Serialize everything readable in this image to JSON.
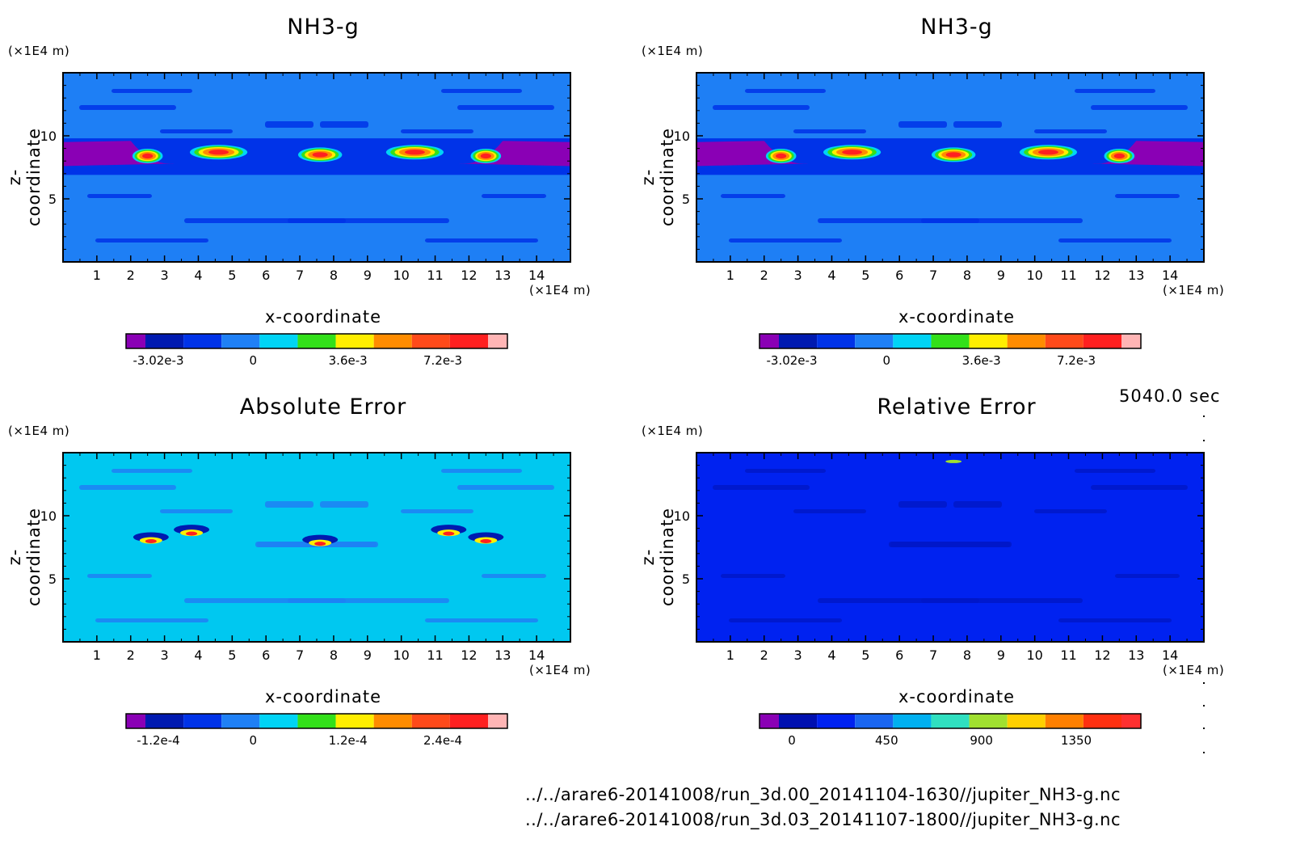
{
  "time_label": "5040.0 sec",
  "files": [
    "../../arare6-20141008/run_3d.00_20141104-1630//jupiter_NH3-g.nc",
    "../../arare6-20141008/run_3d.03_20141107-1800//jupiter_NH3-g.nc"
  ],
  "chart_data": [
    {
      "type": "heatmap",
      "title": "NH3-g",
      "xlabel": "x-coordinate",
      "ylabel": "z-coordinate",
      "x_unit": "(×1E4 m)",
      "y_unit": "(×1E4 m)",
      "xlim": [
        0,
        15
      ],
      "ylim": [
        0,
        15
      ],
      "xticks": [
        "1",
        "2",
        "3",
        "4",
        "5",
        "6",
        "7",
        "8",
        "9",
        "10",
        "11",
        "12",
        "13",
        "14"
      ],
      "yticks": [
        "5",
        "10"
      ],
      "field_background": "#1e7ff5",
      "colorbar": {
        "colors": [
          "#8a00b5",
          "#001ab0",
          "#0033e8",
          "#1f80f5",
          "#00d4f5",
          "#33e01a",
          "#ffee00",
          "#ff8c00",
          "#ff4a1a",
          "#ff2020",
          "#ffb5b5"
        ],
        "tick_labels": [
          "-3.02e-3",
          "0",
          "3.6e-3",
          "7.2e-3"
        ]
      }
    },
    {
      "type": "heatmap",
      "title": "NH3-g",
      "xlabel": "x-coordinate",
      "ylabel": "z-coordinate",
      "x_unit": "(×1E4 m)",
      "y_unit": "(×1E4 m)",
      "xlim": [
        0,
        15
      ],
      "ylim": [
        0,
        15
      ],
      "xticks": [
        "1",
        "2",
        "3",
        "4",
        "5",
        "6",
        "7",
        "8",
        "9",
        "10",
        "11",
        "12",
        "13",
        "14"
      ],
      "yticks": [
        "5",
        "10"
      ],
      "field_background": "#1e7ff5",
      "colorbar": {
        "colors": [
          "#8a00b5",
          "#001ab0",
          "#0033e8",
          "#1f80f5",
          "#00d4f5",
          "#33e01a",
          "#ffee00",
          "#ff8c00",
          "#ff4a1a",
          "#ff2020",
          "#ffb5b5"
        ],
        "tick_labels": [
          "-3.02e-3",
          "0",
          "3.6e-3",
          "7.2e-3"
        ]
      }
    },
    {
      "type": "heatmap",
      "title": "Absolute Error",
      "xlabel": "x-coordinate",
      "ylabel": "z-coordinate",
      "x_unit": "(×1E4 m)",
      "y_unit": "(×1E4 m)",
      "xlim": [
        0,
        15
      ],
      "ylim": [
        0,
        15
      ],
      "xticks": [
        "1",
        "2",
        "3",
        "4",
        "5",
        "6",
        "7",
        "8",
        "9",
        "10",
        "11",
        "12",
        "13",
        "14"
      ],
      "yticks": [
        "5",
        "10"
      ],
      "field_background": "#00c8f0",
      "colorbar": {
        "colors": [
          "#8a00b5",
          "#001ab0",
          "#0033e8",
          "#1f80f5",
          "#00d4f5",
          "#33e01a",
          "#ffee00",
          "#ff8c00",
          "#ff4a1a",
          "#ff2020",
          "#ffb5b5"
        ],
        "tick_labels": [
          "-1.2e-4",
          "0",
          "1.2e-4",
          "2.4e-4"
        ]
      }
    },
    {
      "type": "heatmap",
      "title": "Relative Error",
      "xlabel": "x-coordinate",
      "ylabel": "z-coordinate",
      "x_unit": "(×1E4 m)",
      "y_unit": "(×1E4 m)",
      "xlim": [
        0,
        15
      ],
      "ylim": [
        0,
        15
      ],
      "xticks": [
        "1",
        "2",
        "3",
        "4",
        "5",
        "6",
        "7",
        "8",
        "9",
        "10",
        "11",
        "12",
        "13",
        "14"
      ],
      "yticks": [
        "5",
        "10"
      ],
      "field_background": "#0022f0",
      "colorbar": {
        "colors": [
          "#8a00b5",
          "#0010b0",
          "#0022f0",
          "#1a66f0",
          "#00b0f0",
          "#30e0c0",
          "#a0e030",
          "#ffd000",
          "#ff8000",
          "#ff3010",
          "#ff3030"
        ],
        "tick_labels": [
          "0",
          "450",
          "900",
          "1350"
        ]
      }
    }
  ]
}
